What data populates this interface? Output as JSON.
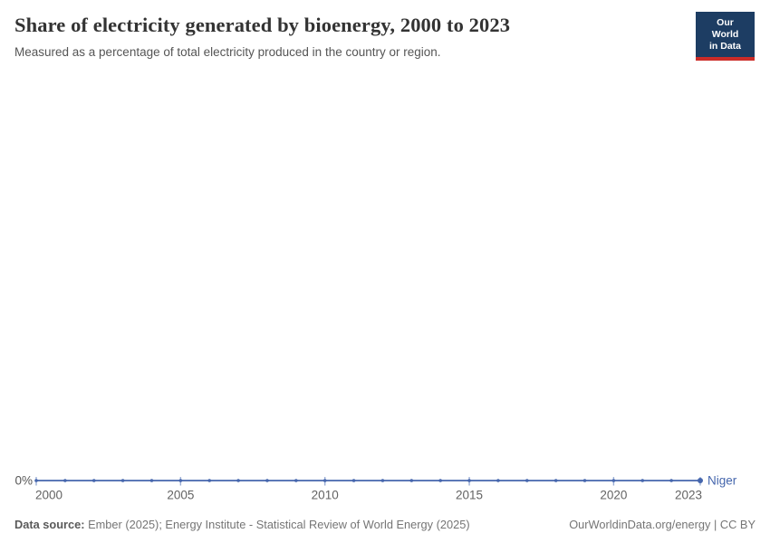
{
  "header": {
    "title": "Share of electricity generated by bioenergy, 2000 to 2023",
    "subtitle": "Measured as a percentage of total electricity produced in the country or region.",
    "logo": {
      "line1": "Our World",
      "line2": "in Data",
      "bg_color": "#1D3D63",
      "bar_color": "#CC2C28"
    }
  },
  "chart_data": {
    "type": "line",
    "title": "Share of electricity generated by bioenergy, 2000 to 2023",
    "x": [
      2000,
      2001,
      2002,
      2003,
      2004,
      2005,
      2006,
      2007,
      2008,
      2009,
      2010,
      2011,
      2012,
      2013,
      2014,
      2015,
      2016,
      2017,
      2018,
      2019,
      2020,
      2021,
      2022,
      2023
    ],
    "series": [
      {
        "name": "Niger",
        "color": "#4566AD",
        "values": [
          0,
          0,
          0,
          0,
          0,
          0,
          0,
          0,
          0,
          0,
          0,
          0,
          0,
          0,
          0,
          0,
          0,
          0,
          0,
          0,
          0,
          0,
          0,
          0
        ]
      }
    ],
    "xlabel": "",
    "ylabel": "",
    "x_ticks": [
      2000,
      2005,
      2010,
      2015,
      2020,
      2023
    ],
    "y_tick_labels": [
      "0%"
    ],
    "ylim": [
      0,
      1
    ],
    "grid": false,
    "tick_color": "#9AAED6",
    "legend": "end-of-line-label"
  },
  "footer": {
    "datasource_label": "Data source:",
    "datasource_text": " Ember (2025); Energy Institute - Statistical Review of World Energy (2025)",
    "license_text": "OurWorldinData.org/energy | CC BY"
  }
}
